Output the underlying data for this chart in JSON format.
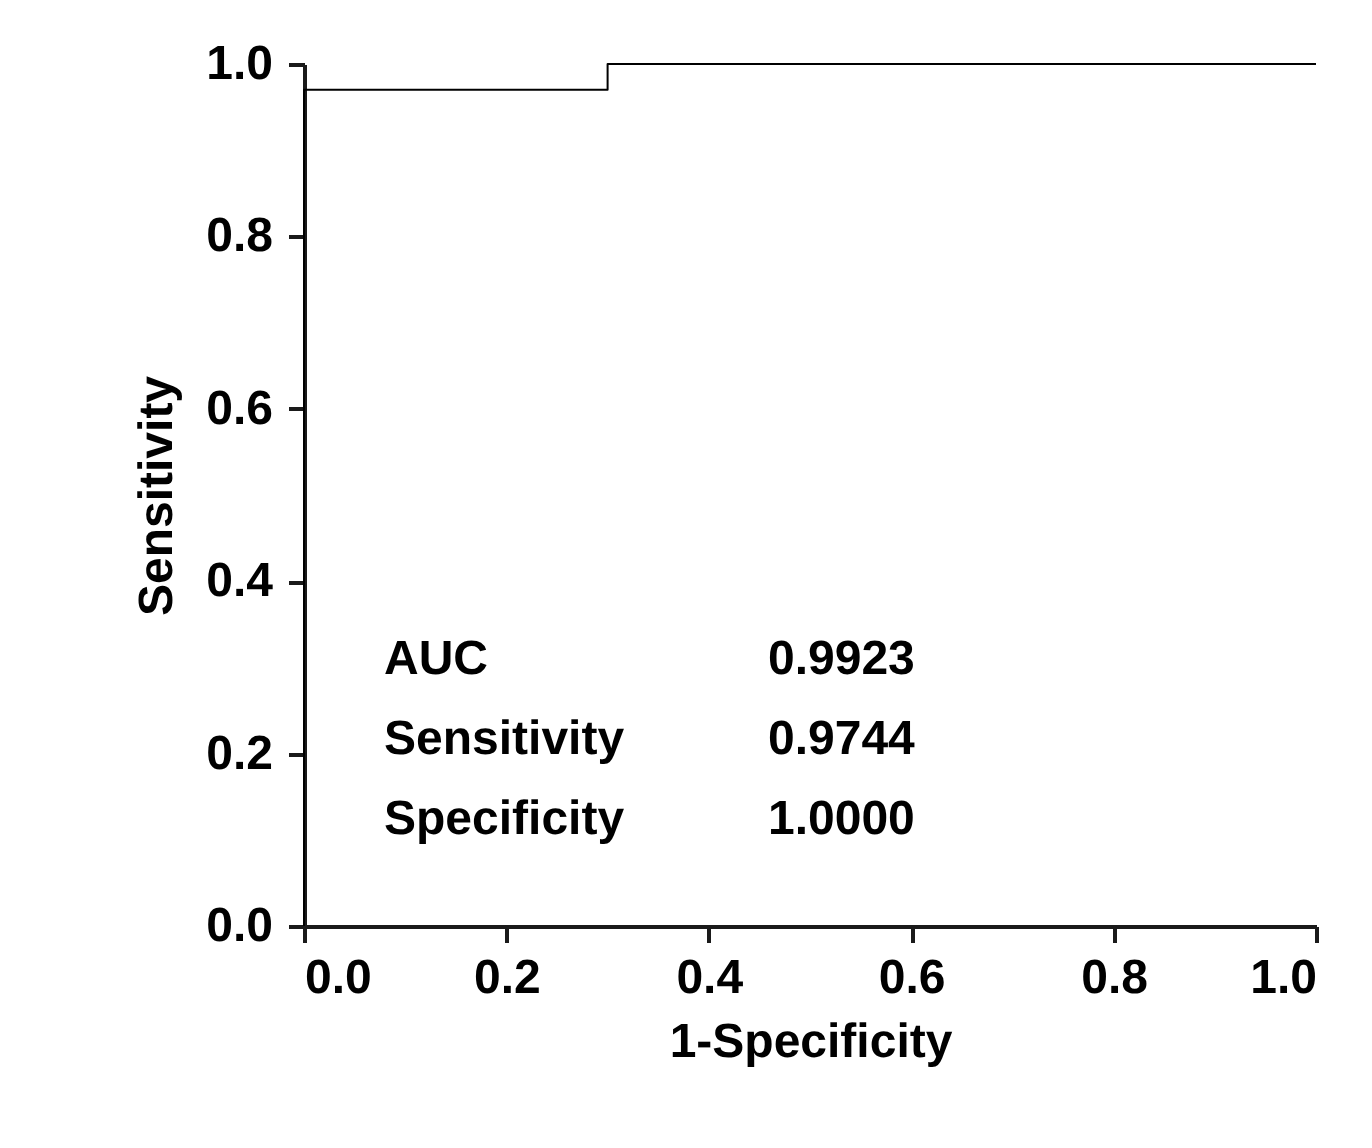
{
  "chart_data": {
    "type": "line",
    "xlabel": "1-Specificity",
    "ylabel": "Sensitivity",
    "xlim": [
      0,
      1
    ],
    "ylim": [
      0,
      1
    ],
    "xticks": [
      {
        "value": 0,
        "label": "0.0"
      },
      {
        "value": 0.2,
        "label": "0.2"
      },
      {
        "value": 0.4,
        "label": "0.4"
      },
      {
        "value": 0.6,
        "label": "0.6"
      },
      {
        "value": 0.8,
        "label": "0.8"
      },
      {
        "value": 1,
        "label": "1.0"
      }
    ],
    "yticks": [
      {
        "value": 0,
        "label": "0.0"
      },
      {
        "value": 0.2,
        "label": "0.2"
      },
      {
        "value": 0.4,
        "label": "0.4"
      },
      {
        "value": 0.6,
        "label": "0.6"
      },
      {
        "value": 0.8,
        "label": "0.8"
      },
      {
        "value": 1,
        "label": "1.0"
      }
    ],
    "grid": false,
    "line_style": "solid",
    "series": [
      {
        "color": "#000000",
        "x": [
          0,
          0,
          0.3,
          0.3,
          1
        ],
        "values": [
          0,
          0.97,
          0.97,
          1,
          1
        ]
      }
    ],
    "annotations": [
      "AUC",
      "0.9923",
      "Sensitivity",
      "0.9744",
      "Specificity",
      "1.0000"
    ]
  }
}
